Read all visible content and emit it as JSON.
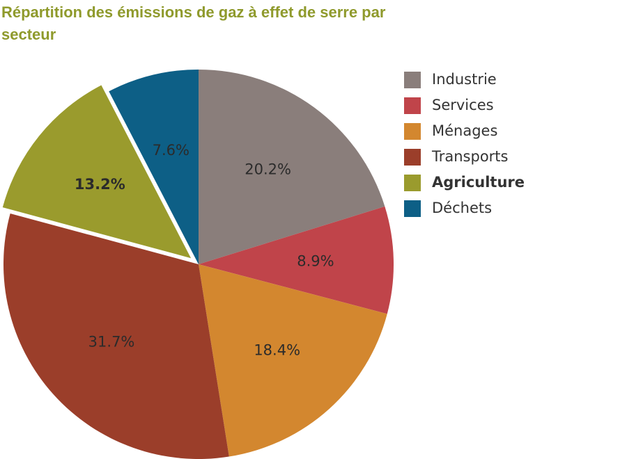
{
  "chart_data": {
    "type": "pie",
    "title": "Répartition des émissions de gaz à effet de serre par secteur",
    "categories": [
      "Industrie",
      "Services",
      "Ménages",
      "Transports",
      "Agriculture",
      "Déchets"
    ],
    "values": [
      20.2,
      8.9,
      18.4,
      31.7,
      13.2,
      7.6
    ],
    "value_labels": [
      "20.2%",
      "8.9%",
      "18.4%",
      "31.7%",
      "13.2%",
      "7.6%"
    ],
    "colors": [
      "#8a7e7b",
      "#c0444a",
      "#d3872f",
      "#9b3e2a",
      "#9a9b2d",
      "#0d5f86"
    ],
    "exploded": [
      false,
      false,
      false,
      false,
      true,
      false
    ],
    "legend": "right"
  }
}
